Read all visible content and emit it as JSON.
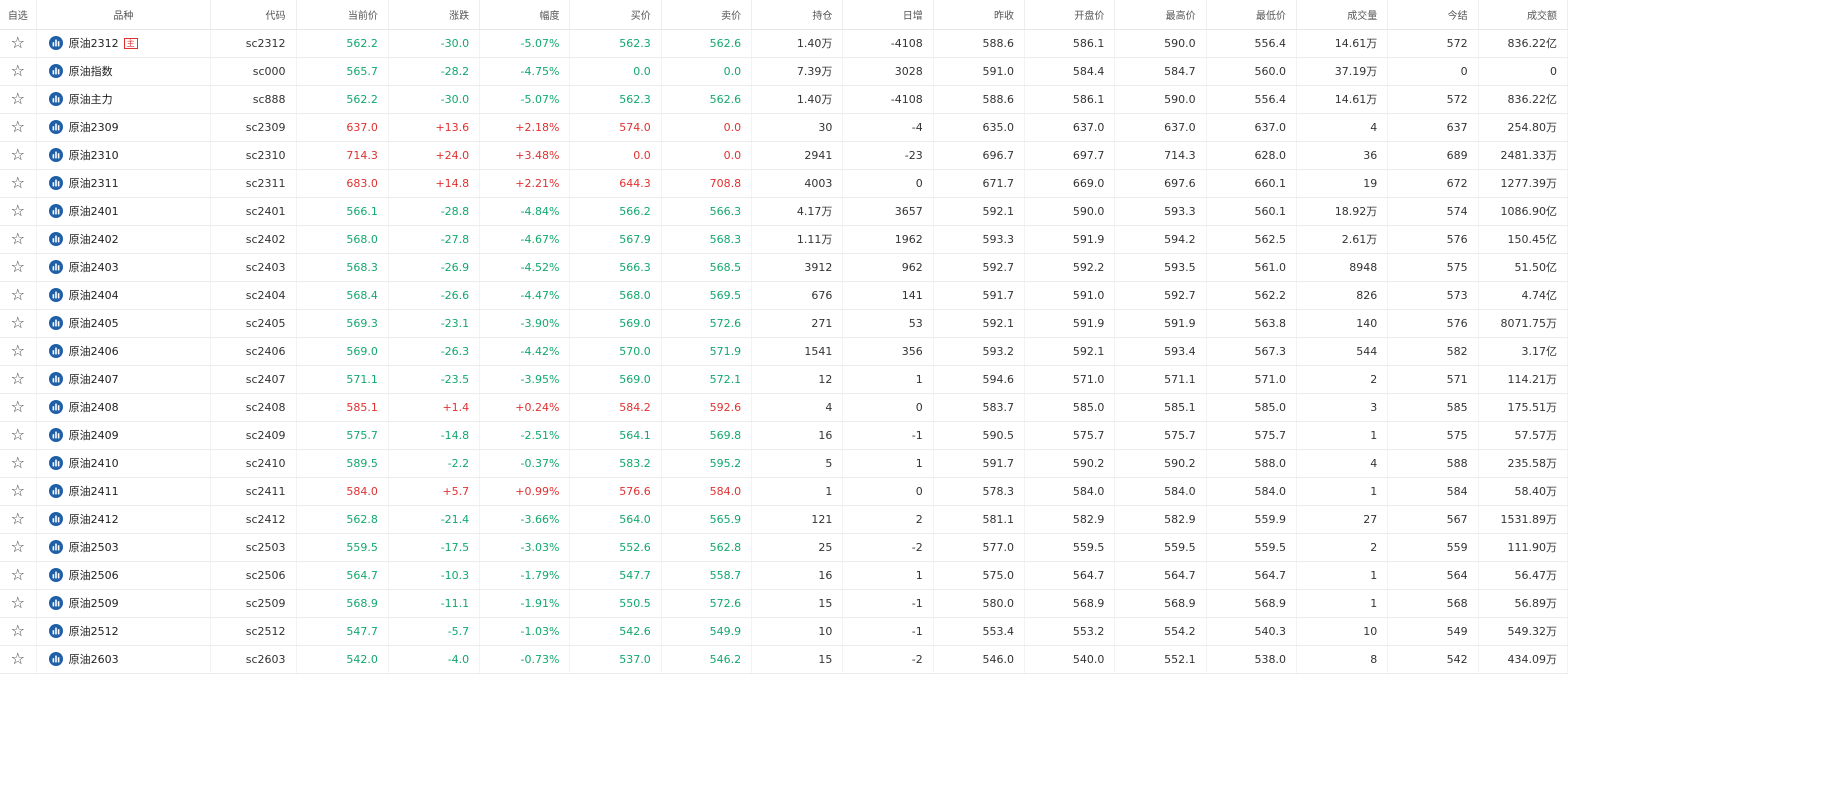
{
  "table": {
    "headers": {
      "fav": "自选",
      "name": "品种",
      "code": "代码",
      "price": "当前价",
      "change": "涨跌",
      "pct": "幅度",
      "bid": "买价",
      "ask": "卖价",
      "oi": "持仓",
      "oi_change": "日增",
      "prev_close": "昨收",
      "open": "开盘价",
      "high": "最高价",
      "low": "最低价",
      "volume": "成交量",
      "settle": "今结",
      "turnover": "成交额"
    },
    "rows": [
      {
        "name": "原油2312",
        "badge": "主",
        "code": "sc2312",
        "price": "562.2",
        "change": "-30.0",
        "pct": "-5.07%",
        "bid": "562.3",
        "ask": "562.6",
        "oi": "1.40万",
        "oi_change": "-4108",
        "prev_close": "588.6",
        "open": "586.1",
        "high": "590.0",
        "low": "556.4",
        "volume": "14.61万",
        "settle": "572",
        "turnover": "836.22亿",
        "trend": "down"
      },
      {
        "name": "原油指数",
        "badge": "",
        "code": "sc000",
        "price": "565.7",
        "change": "-28.2",
        "pct": "-4.75%",
        "bid": "0.0",
        "ask": "0.0",
        "oi": "7.39万",
        "oi_change": "3028",
        "prev_close": "591.0",
        "open": "584.4",
        "high": "584.7",
        "low": "560.0",
        "volume": "37.19万",
        "settle": "0",
        "turnover": "0",
        "trend": "down"
      },
      {
        "name": "原油主力",
        "badge": "",
        "code": "sc888",
        "price": "562.2",
        "change": "-30.0",
        "pct": "-5.07%",
        "bid": "562.3",
        "ask": "562.6",
        "oi": "1.40万",
        "oi_change": "-4108",
        "prev_close": "588.6",
        "open": "586.1",
        "high": "590.0",
        "low": "556.4",
        "volume": "14.61万",
        "settle": "572",
        "turnover": "836.22亿",
        "trend": "down"
      },
      {
        "name": "原油2309",
        "badge": "",
        "code": "sc2309",
        "price": "637.0",
        "change": "+13.6",
        "pct": "+2.18%",
        "bid": "574.0",
        "ask": "0.0",
        "oi": "30",
        "oi_change": "-4",
        "prev_close": "635.0",
        "open": "637.0",
        "high": "637.0",
        "low": "637.0",
        "volume": "4",
        "settle": "637",
        "turnover": "254.80万",
        "trend": "up"
      },
      {
        "name": "原油2310",
        "badge": "",
        "code": "sc2310",
        "price": "714.3",
        "change": "+24.0",
        "pct": "+3.48%",
        "bid": "0.0",
        "ask": "0.0",
        "oi": "2941",
        "oi_change": "-23",
        "prev_close": "696.7",
        "open": "697.7",
        "high": "714.3",
        "low": "628.0",
        "volume": "36",
        "settle": "689",
        "turnover": "2481.33万",
        "trend": "up"
      },
      {
        "name": "原油2311",
        "badge": "",
        "code": "sc2311",
        "price": "683.0",
        "change": "+14.8",
        "pct": "+2.21%",
        "bid": "644.3",
        "ask": "708.8",
        "oi": "4003",
        "oi_change": "0",
        "prev_close": "671.7",
        "open": "669.0",
        "high": "697.6",
        "low": "660.1",
        "volume": "19",
        "settle": "672",
        "turnover": "1277.39万",
        "trend": "up"
      },
      {
        "name": "原油2401",
        "badge": "",
        "code": "sc2401",
        "price": "566.1",
        "change": "-28.8",
        "pct": "-4.84%",
        "bid": "566.2",
        "ask": "566.3",
        "oi": "4.17万",
        "oi_change": "3657",
        "prev_close": "592.1",
        "open": "590.0",
        "high": "593.3",
        "low": "560.1",
        "volume": "18.92万",
        "settle": "574",
        "turnover": "1086.90亿",
        "trend": "down"
      },
      {
        "name": "原油2402",
        "badge": "",
        "code": "sc2402",
        "price": "568.0",
        "change": "-27.8",
        "pct": "-4.67%",
        "bid": "567.9",
        "ask": "568.3",
        "oi": "1.11万",
        "oi_change": "1962",
        "prev_close": "593.3",
        "open": "591.9",
        "high": "594.2",
        "low": "562.5",
        "volume": "2.61万",
        "settle": "576",
        "turnover": "150.45亿",
        "trend": "down"
      },
      {
        "name": "原油2403",
        "badge": "",
        "code": "sc2403",
        "price": "568.3",
        "change": "-26.9",
        "pct": "-4.52%",
        "bid": "566.3",
        "ask": "568.5",
        "oi": "3912",
        "oi_change": "962",
        "prev_close": "592.7",
        "open": "592.2",
        "high": "593.5",
        "low": "561.0",
        "volume": "8948",
        "settle": "575",
        "turnover": "51.50亿",
        "trend": "down"
      },
      {
        "name": "原油2404",
        "badge": "",
        "code": "sc2404",
        "price": "568.4",
        "change": "-26.6",
        "pct": "-4.47%",
        "bid": "568.0",
        "ask": "569.5",
        "oi": "676",
        "oi_change": "141",
        "prev_close": "591.7",
        "open": "591.0",
        "high": "592.7",
        "low": "562.2",
        "volume": "826",
        "settle": "573",
        "turnover": "4.74亿",
        "trend": "down"
      },
      {
        "name": "原油2405",
        "badge": "",
        "code": "sc2405",
        "price": "569.3",
        "change": "-23.1",
        "pct": "-3.90%",
        "bid": "569.0",
        "ask": "572.6",
        "oi": "271",
        "oi_change": "53",
        "prev_close": "592.1",
        "open": "591.9",
        "high": "591.9",
        "low": "563.8",
        "volume": "140",
        "settle": "576",
        "turnover": "8071.75万",
        "trend": "down"
      },
      {
        "name": "原油2406",
        "badge": "",
        "code": "sc2406",
        "price": "569.0",
        "change": "-26.3",
        "pct": "-4.42%",
        "bid": "570.0",
        "ask": "571.9",
        "oi": "1541",
        "oi_change": "356",
        "prev_close": "593.2",
        "open": "592.1",
        "high": "593.4",
        "low": "567.3",
        "volume": "544",
        "settle": "582",
        "turnover": "3.17亿",
        "trend": "down"
      },
      {
        "name": "原油2407",
        "badge": "",
        "code": "sc2407",
        "price": "571.1",
        "change": "-23.5",
        "pct": "-3.95%",
        "bid": "569.0",
        "ask": "572.1",
        "oi": "12",
        "oi_change": "1",
        "prev_close": "594.6",
        "open": "571.0",
        "high": "571.1",
        "low": "571.0",
        "volume": "2",
        "settle": "571",
        "turnover": "114.21万",
        "trend": "down"
      },
      {
        "name": "原油2408",
        "badge": "",
        "code": "sc2408",
        "price": "585.1",
        "change": "+1.4",
        "pct": "+0.24%",
        "bid": "584.2",
        "ask": "592.6",
        "oi": "4",
        "oi_change": "0",
        "prev_close": "583.7",
        "open": "585.0",
        "high": "585.1",
        "low": "585.0",
        "volume": "3",
        "settle": "585",
        "turnover": "175.51万",
        "trend": "up"
      },
      {
        "name": "原油2409",
        "badge": "",
        "code": "sc2409",
        "price": "575.7",
        "change": "-14.8",
        "pct": "-2.51%",
        "bid": "564.1",
        "ask": "569.8",
        "oi": "16",
        "oi_change": "-1",
        "prev_close": "590.5",
        "open": "575.7",
        "high": "575.7",
        "low": "575.7",
        "volume": "1",
        "settle": "575",
        "turnover": "57.57万",
        "trend": "down"
      },
      {
        "name": "原油2410",
        "badge": "",
        "code": "sc2410",
        "price": "589.5",
        "change": "-2.2",
        "pct": "-0.37%",
        "bid": "583.2",
        "ask": "595.2",
        "oi": "5",
        "oi_change": "1",
        "prev_close": "591.7",
        "open": "590.2",
        "high": "590.2",
        "low": "588.0",
        "volume": "4",
        "settle": "588",
        "turnover": "235.58万",
        "trend": "down"
      },
      {
        "name": "原油2411",
        "badge": "",
        "code": "sc2411",
        "price": "584.0",
        "change": "+5.7",
        "pct": "+0.99%",
        "bid": "576.6",
        "ask": "584.0",
        "oi": "1",
        "oi_change": "0",
        "prev_close": "578.3",
        "open": "584.0",
        "high": "584.0",
        "low": "584.0",
        "volume": "1",
        "settle": "584",
        "turnover": "58.40万",
        "trend": "up"
      },
      {
        "name": "原油2412",
        "badge": "",
        "code": "sc2412",
        "price": "562.8",
        "change": "-21.4",
        "pct": "-3.66%",
        "bid": "564.0",
        "ask": "565.9",
        "oi": "121",
        "oi_change": "2",
        "prev_close": "581.1",
        "open": "582.9",
        "high": "582.9",
        "low": "559.9",
        "volume": "27",
        "settle": "567",
        "turnover": "1531.89万",
        "trend": "down"
      },
      {
        "name": "原油2503",
        "badge": "",
        "code": "sc2503",
        "price": "559.5",
        "change": "-17.5",
        "pct": "-3.03%",
        "bid": "552.6",
        "ask": "562.8",
        "oi": "25",
        "oi_change": "-2",
        "prev_close": "577.0",
        "open": "559.5",
        "high": "559.5",
        "low": "559.5",
        "volume": "2",
        "settle": "559",
        "turnover": "111.90万",
        "trend": "down"
      },
      {
        "name": "原油2506",
        "badge": "",
        "code": "sc2506",
        "price": "564.7",
        "change": "-10.3",
        "pct": "-1.79%",
        "bid": "547.7",
        "ask": "558.7",
        "oi": "16",
        "oi_change": "1",
        "prev_close": "575.0",
        "open": "564.7",
        "high": "564.7",
        "low": "564.7",
        "volume": "1",
        "settle": "564",
        "turnover": "56.47万",
        "trend": "down"
      },
      {
        "name": "原油2509",
        "badge": "",
        "code": "sc2509",
        "price": "568.9",
        "change": "-11.1",
        "pct": "-1.91%",
        "bid": "550.5",
        "ask": "572.6",
        "oi": "15",
        "oi_change": "-1",
        "prev_close": "580.0",
        "open": "568.9",
        "high": "568.9",
        "low": "568.9",
        "volume": "1",
        "settle": "568",
        "turnover": "56.89万",
        "trend": "down"
      },
      {
        "name": "原油2512",
        "badge": "",
        "code": "sc2512",
        "price": "547.7",
        "change": "-5.7",
        "pct": "-1.03%",
        "bid": "542.6",
        "ask": "549.9",
        "oi": "10",
        "oi_change": "-1",
        "prev_close": "553.4",
        "open": "553.2",
        "high": "554.2",
        "low": "540.3",
        "volume": "10",
        "settle": "549",
        "turnover": "549.32万",
        "trend": "down"
      },
      {
        "name": "原油2603",
        "badge": "",
        "code": "sc2603",
        "price": "542.0",
        "change": "-4.0",
        "pct": "-0.73%",
        "bid": "537.0",
        "ask": "546.2",
        "oi": "15",
        "oi_change": "-2",
        "prev_close": "546.0",
        "open": "540.0",
        "high": "552.1",
        "low": "538.0",
        "volume": "8",
        "settle": "542",
        "turnover": "434.09万",
        "trend": "down"
      }
    ]
  },
  "icons": {
    "favorite": "star-outline-icon",
    "chart": "bar-chart-circle-icon"
  },
  "colors": {
    "up": "#e03131",
    "down": "#12a86e",
    "chart_icon": "#1f5fa8"
  }
}
